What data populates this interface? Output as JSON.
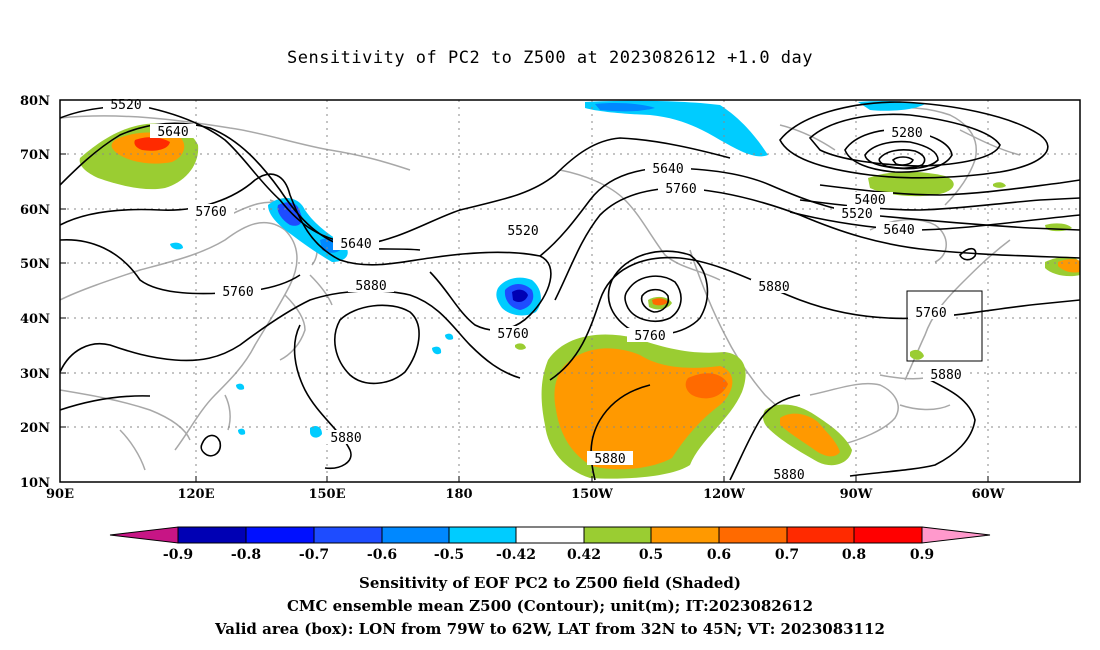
{
  "title": "Sensitivity of PC2 to Z500 at 2023082612 +1.0 day",
  "map": {
    "lat_labels": [
      "80N",
      "70N",
      "60N",
      "50N",
      "40N",
      "30N",
      "20N",
      "10N"
    ],
    "lon_labels": [
      "90E",
      "120E",
      "150E",
      "180",
      "150W",
      "120W",
      "90W",
      "60W"
    ],
    "contour_labels": [
      "5520",
      "5640",
      "5760",
      "5640",
      "5880",
      "5760",
      "5520",
      "5640",
      "5760",
      "5760",
      "5880",
      "5760",
      "5880",
      "5280",
      "5400",
      "5520",
      "5640",
      "5760",
      "5880",
      "5880",
      "5880"
    ],
    "colors": {
      "contour": "#000000",
      "coast": "#a8a8a8",
      "grid": "#8a8a8a",
      "pos_0_5": "#9acd32",
      "pos_0_6": "#ff9900",
      "pos_0_7": "#ff6a00",
      "pos_0_8": "#ff2a00",
      "neg_0_5": "#00ccff",
      "neg_0_6": "#0088ff",
      "neg_0_7": "#1e4cff",
      "neg_0_8": "#0010ff",
      "neg_0_9": "#0000b4"
    }
  },
  "colorbar": {
    "labels": [
      "-0.9",
      "-0.8",
      "-0.7",
      "-0.6",
      "-0.5",
      "-0.42",
      "0.42",
      "0.5",
      "0.6",
      "0.7",
      "0.8",
      "0.9"
    ],
    "colors": [
      "#c71585",
      "#0000b4",
      "#0010ff",
      "#1e4cff",
      "#0088ff",
      "#00ccff",
      "#ffffff",
      "#9acd32",
      "#ff9900",
      "#ff6a00",
      "#ff2a00",
      "#ff0000",
      "#ff99cc"
    ]
  },
  "captions": {
    "line1": "Sensitivity of EOF PC2 to Z500 field (Shaded)",
    "line2": "CMC ensemble mean Z500 (Contour); unit(m); IT:2023082612",
    "line3": "Valid area (box): LON from 79W to 62W, LAT from 32N to 45N; VT: 2023083112"
  }
}
